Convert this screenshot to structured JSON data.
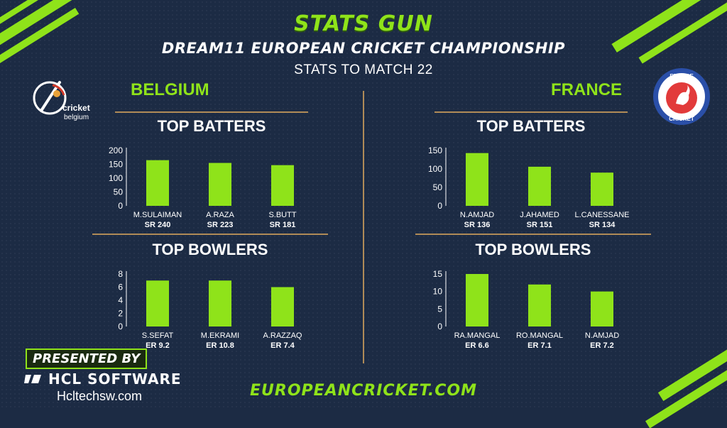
{
  "header": {
    "brand": "STATS GUN",
    "event_title": "DREAM11 EUROPEAN CRICKET CHAMPIONSHIP",
    "subtitle": "STATS TO MATCH 22"
  },
  "teams": {
    "left": {
      "name": "BELGIUM",
      "logo_text_a": "cricket",
      "logo_text_b": "belgium"
    },
    "right": {
      "name": "FRANCE",
      "logo_text_top": "FRANCE",
      "logo_text_bottom": "CRICKET"
    }
  },
  "sections": {
    "top_batters": "TOP BATTERS",
    "top_bowlers": "TOP BOWLERS"
  },
  "colors": {
    "background": "#1c2b44",
    "accent": "#8fe31a",
    "divider": "#b08b57",
    "text": "#ffffff"
  },
  "chart_data": [
    {
      "id": "belgium-batters",
      "type": "bar",
      "title": "TOP BATTERS",
      "categories": [
        "M.SULAIMAN",
        "A.RAZA",
        "S.BUTT"
      ],
      "values": [
        165,
        155,
        147
      ],
      "sublabels": [
        "SR 240",
        "SR 223",
        "SR 181"
      ],
      "yticks": [
        0,
        50,
        100,
        150,
        200
      ],
      "ylim": [
        0,
        200
      ],
      "color": "#8fe31a"
    },
    {
      "id": "france-batters",
      "type": "bar",
      "title": "TOP BATTERS",
      "categories": [
        "N.AMJAD",
        "J.AHAMED",
        "L.CANESSANE"
      ],
      "values": [
        143,
        106,
        90
      ],
      "sublabels": [
        "SR 136",
        "SR 151",
        "SR 134"
      ],
      "yticks": [
        0,
        50,
        100,
        150
      ],
      "ylim": [
        0,
        150
      ],
      "color": "#8fe31a"
    },
    {
      "id": "belgium-bowlers",
      "type": "bar",
      "title": "TOP BOWLERS",
      "categories": [
        "S.SEFAT",
        "M.EKRAMI",
        "A.RAZZAQ"
      ],
      "values": [
        7,
        7,
        6
      ],
      "sublabels": [
        "ER 9.2",
        "ER 10.8",
        "ER 7.4"
      ],
      "yticks": [
        0,
        2,
        4,
        6,
        8
      ],
      "ylim": [
        0,
        8
      ],
      "color": "#8fe31a"
    },
    {
      "id": "france-bowlers",
      "type": "bar",
      "title": "TOP BOWLERS",
      "categories": [
        "RA.MANGAL",
        "RO.MANGAL",
        "N.AMJAD"
      ],
      "values": [
        15,
        12,
        10
      ],
      "sublabels": [
        "ER 6.6",
        "ER 7.1",
        "ER 7.2"
      ],
      "yticks": [
        0,
        5,
        10,
        15
      ],
      "ylim": [
        0,
        15
      ],
      "color": "#8fe31a"
    }
  ],
  "footer": {
    "presented_by": "PRESENTED BY",
    "sponsor": "HCL SOFTWARE",
    "sponsor_site": "Hcltechsw.com",
    "website": "EUROPEANCRICKET.COM"
  }
}
